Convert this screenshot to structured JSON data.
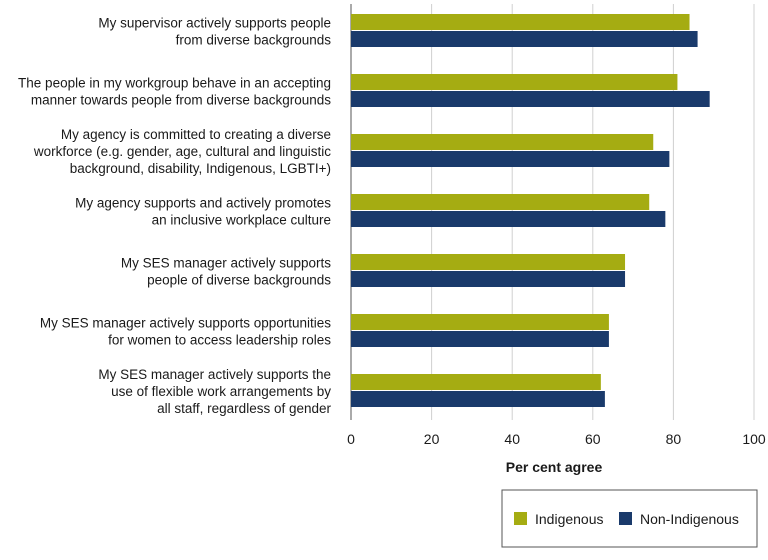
{
  "chart_data": {
    "type": "bar",
    "orientation": "horizontal",
    "title": "",
    "xlabel": "Per cent agree",
    "ylabel": "",
    "xlim": [
      0,
      100
    ],
    "xticks": [
      "0",
      "20",
      "40",
      "60",
      "80",
      "100"
    ],
    "categories": [
      [
        "My supervisor actively supports people",
        "from diverse backgrounds"
      ],
      [
        "The people in my workgroup behave in an accepting",
        "manner towards people from diverse backgrounds"
      ],
      [
        "My agency is committed to creating a diverse",
        "workforce (e.g. gender, age, cultural and linguistic",
        "background, disability, Indigenous, LGBTI+)"
      ],
      [
        "My agency supports and actively promotes",
        "an inclusive workplace culture"
      ],
      [
        "My SES manager actively supports",
        "people of diverse backgrounds"
      ],
      [
        "My SES manager actively supports opportunities",
        "for women to access leadership roles"
      ],
      [
        "My SES manager actively supports the",
        "use of flexible work arrangements by",
        "all staff, regardless of gender"
      ]
    ],
    "series": [
      {
        "name": "Indigenous",
        "color": "#a5ac12",
        "values": [
          84,
          81,
          75,
          74,
          68,
          64,
          62
        ]
      },
      {
        "name": "Non-Indigenous",
        "color": "#1a3a6b",
        "values": [
          86,
          89,
          79,
          78,
          68,
          64,
          63
        ]
      }
    ],
    "grid": true,
    "legend_position": "bottom-right"
  }
}
